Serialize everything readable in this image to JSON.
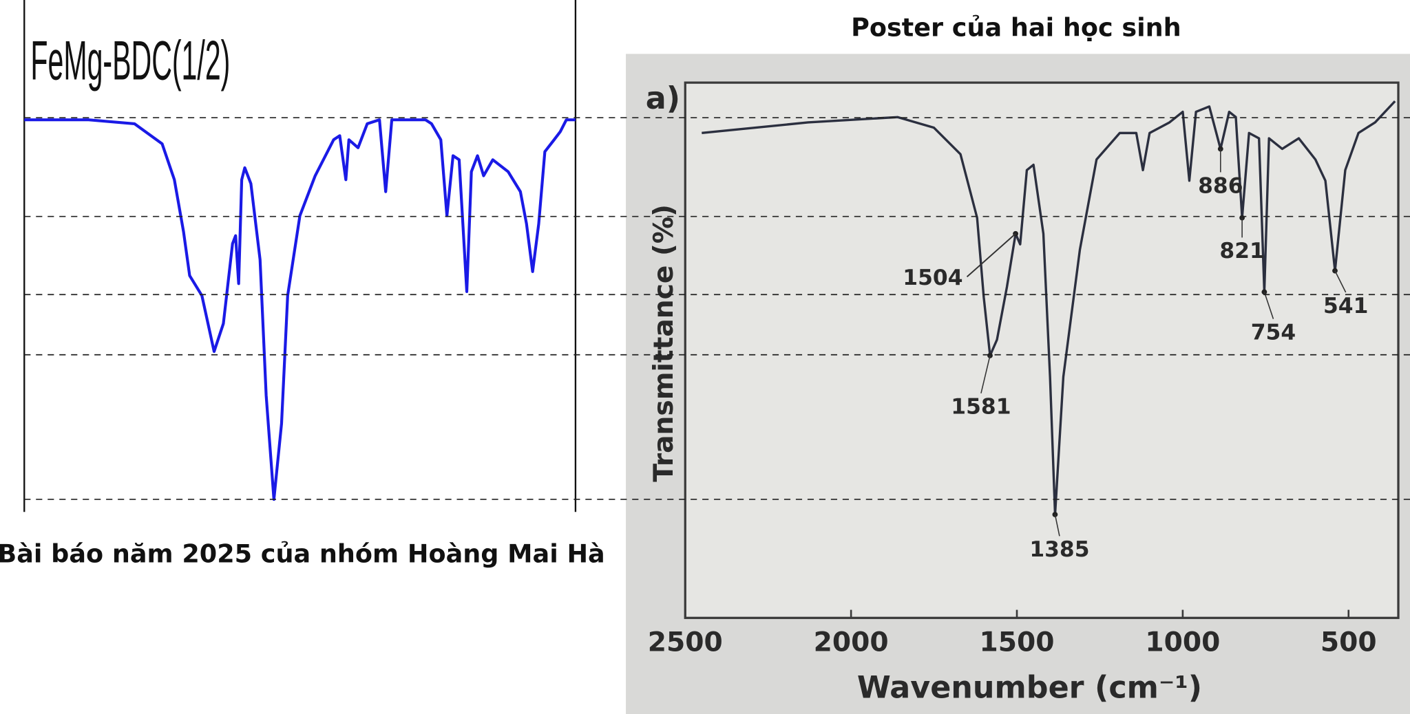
{
  "captions": {
    "right": "Poster của hai học sinh",
    "left": "Bài báo năm 2025 của nhóm Hoàng Mai Hà"
  },
  "chart_data": [
    {
      "type": "line",
      "title": "FeMg-BDC(1/2)",
      "x": [
        2200,
        1990,
        1840,
        1750,
        1710,
        1680,
        1660,
        1620,
        1580,
        1550,
        1520,
        1510,
        1500,
        1490,
        1480,
        1460,
        1430,
        1410,
        1385,
        1360,
        1340,
        1300,
        1250,
        1190,
        1170,
        1150,
        1140,
        1110,
        1080,
        1040,
        1020,
        1000,
        930,
        890,
        870,
        840,
        820,
        800,
        780,
        755,
        740,
        720,
        700,
        670,
        620,
        580,
        560,
        540,
        520,
        500,
        470,
        450,
        430,
        400
      ],
      "series": [
        {
          "color": "#1a1ae6",
          "values": [
            97,
            97,
            96,
            91,
            82,
            69,
            58,
            53,
            39,
            46,
            66,
            68,
            56,
            82,
            85,
            81,
            62,
            28,
            2,
            21,
            53,
            73,
            83,
            92,
            93,
            82,
            92,
            90,
            96,
            97,
            79,
            97,
            97,
            97,
            96,
            92,
            73,
            88,
            87,
            54,
            84,
            88,
            83,
            87,
            84,
            79,
            71,
            59,
            71,
            89,
            92,
            94,
            97,
            97
          ]
        }
      ],
      "xlim": [
        2200,
        400
      ],
      "ylim": [
        0,
        100
      ]
    },
    {
      "type": "line",
      "title": "a)",
      "x_label": "Wavenumber (cm⁻¹)",
      "y_label": "Transmittance (%)",
      "x": [
        2450,
        2130,
        1860,
        1750,
        1670,
        1620,
        1600,
        1581,
        1560,
        1530,
        1504,
        1490,
        1470,
        1450,
        1420,
        1400,
        1385,
        1360,
        1310,
        1260,
        1190,
        1140,
        1120,
        1100,
        1040,
        1000,
        980,
        960,
        920,
        886,
        860,
        840,
        821,
        800,
        770,
        754,
        740,
        700,
        650,
        600,
        570,
        541,
        510,
        470,
        420,
        360
      ],
      "series": [
        {
          "color": "#2b2f3f",
          "values": [
            91,
            93,
            94,
            92,
            87,
            75,
            60,
            49,
            52,
            62,
            72,
            70,
            84,
            85,
            72,
            45,
            19,
            45,
            69,
            86,
            91,
            91,
            84,
            91,
            93,
            95,
            82,
            95,
            96,
            88,
            95,
            94,
            75,
            91,
            90,
            61,
            90,
            88,
            90,
            86,
            82,
            65,
            84,
            91,
            93,
            97
          ]
        }
      ],
      "peak_labels": [
        1581,
        1504,
        1385,
        886,
        821,
        754,
        541
      ],
      "xlim": [
        2500,
        350
      ],
      "ylim": [
        0,
        100
      ],
      "xticks": [
        2500,
        2000,
        1500,
        1000,
        500
      ]
    }
  ]
}
